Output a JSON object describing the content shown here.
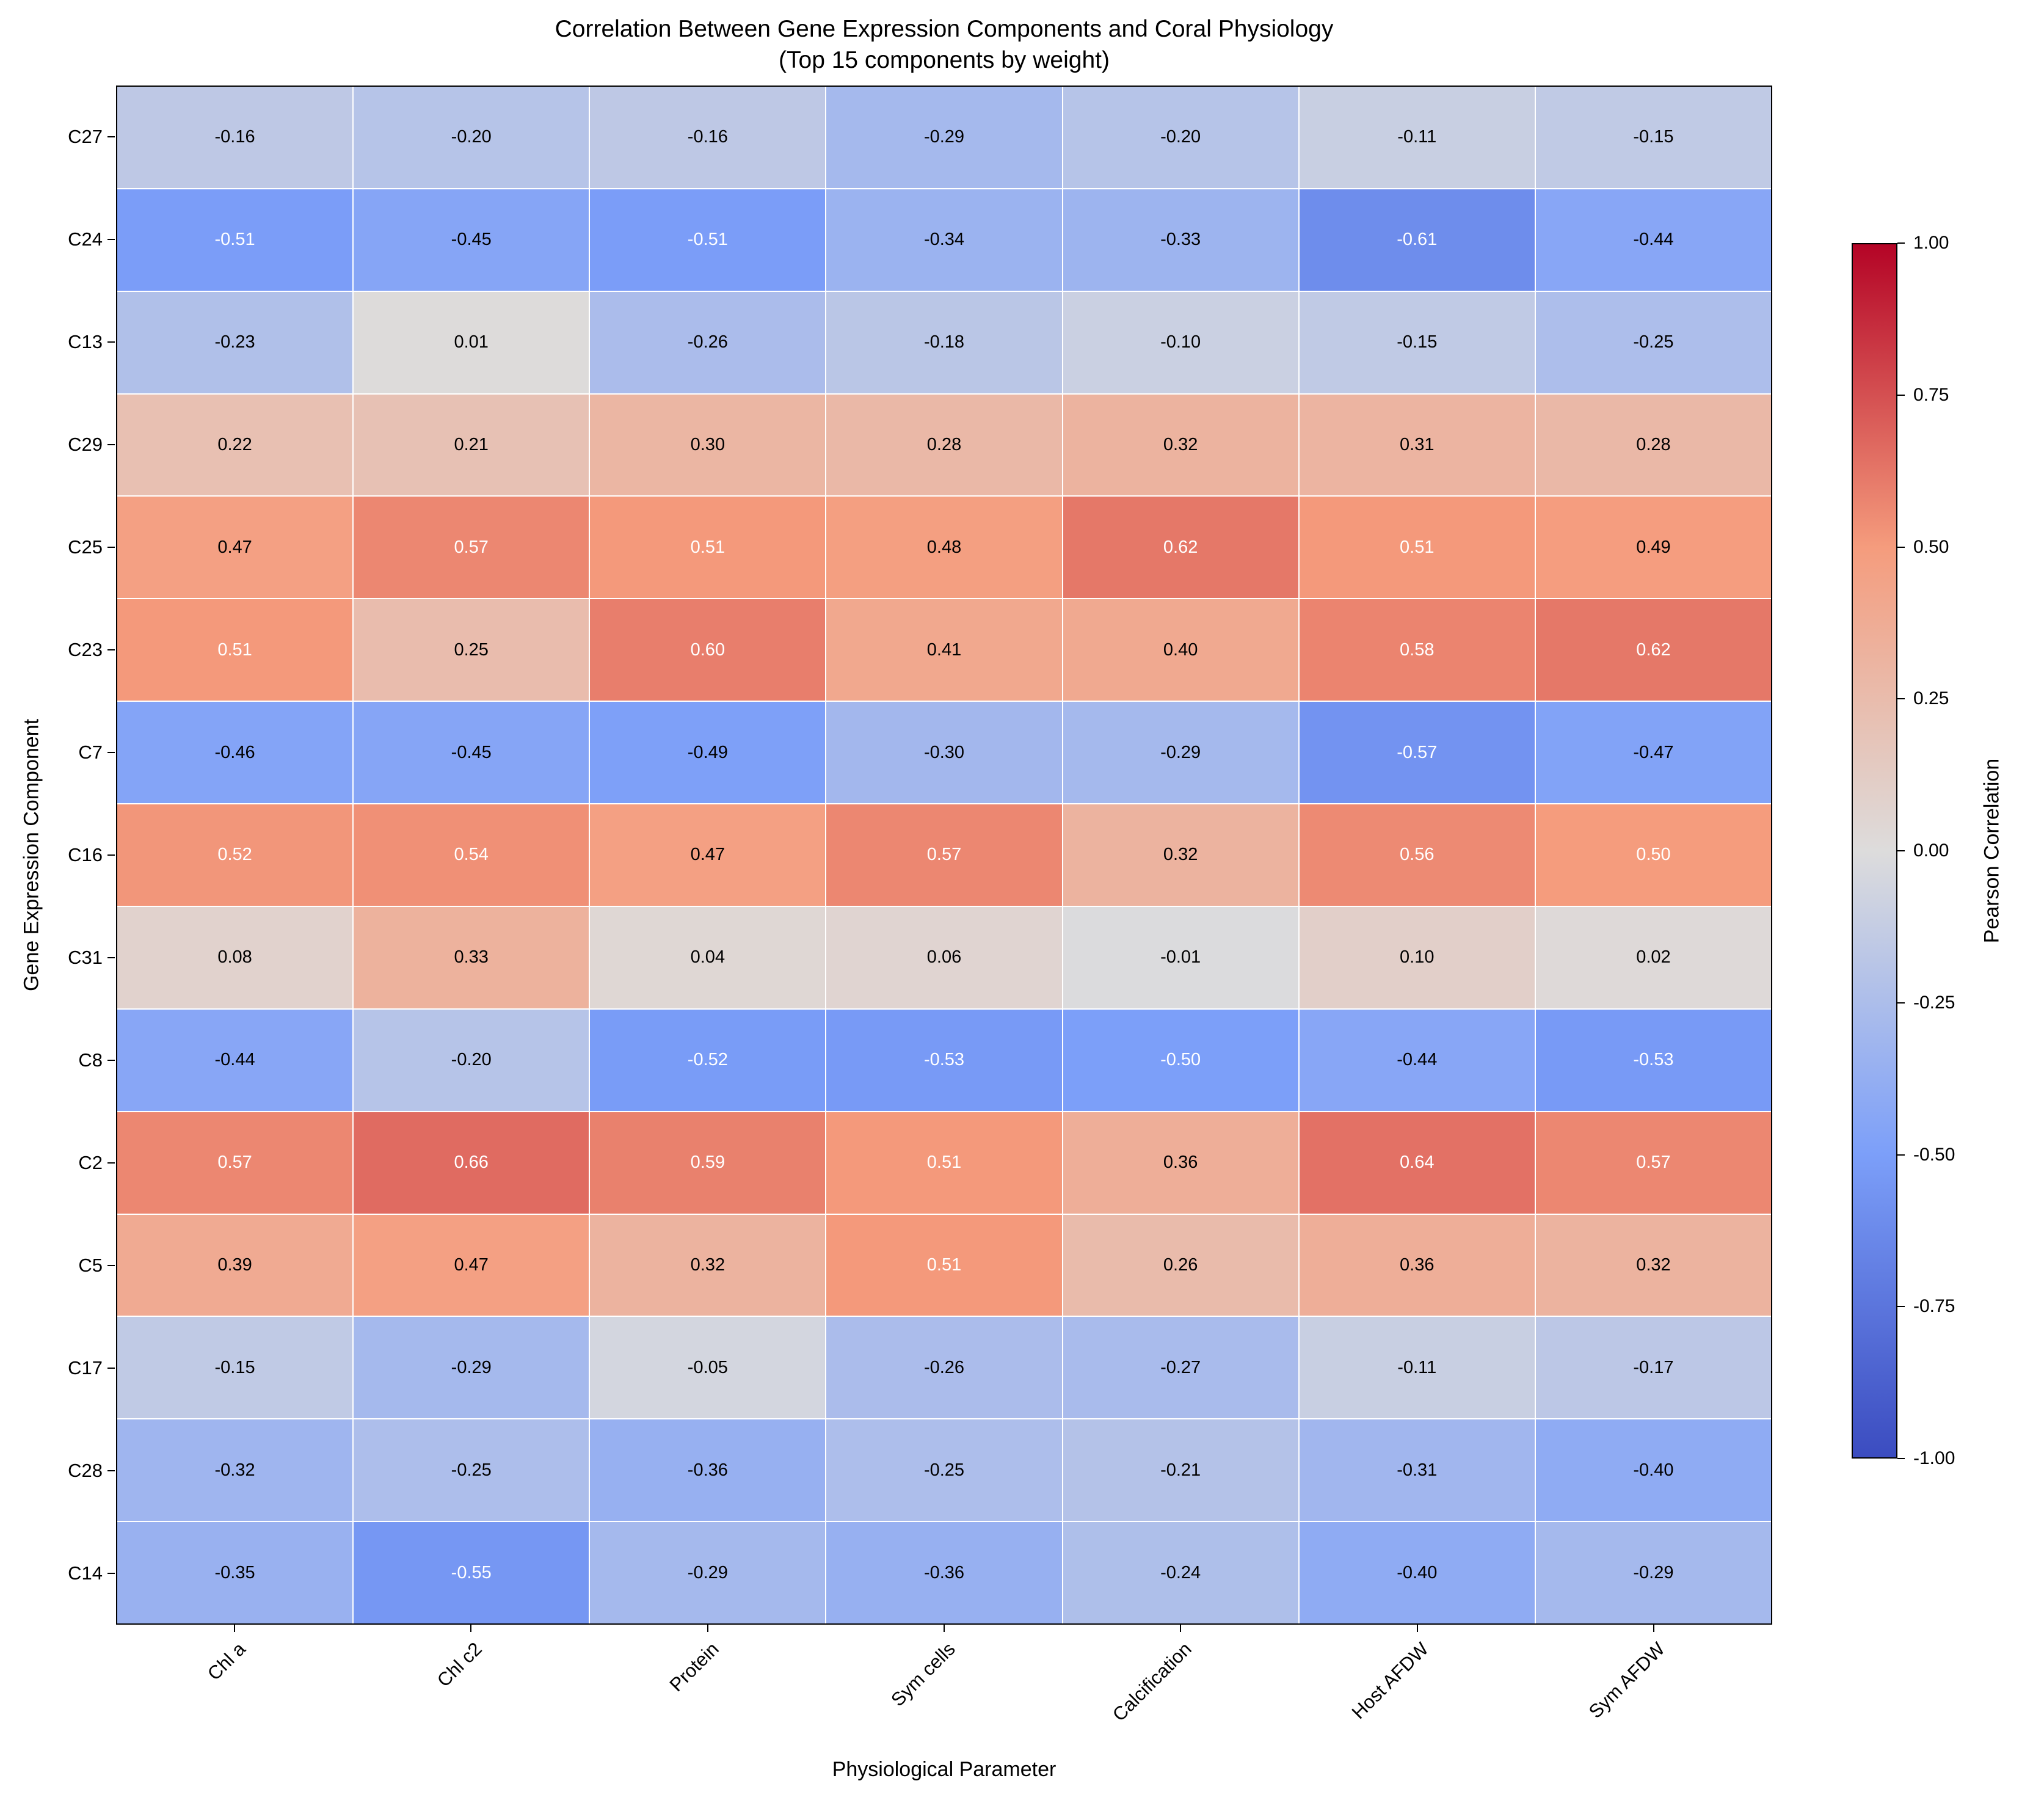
{
  "chart_data": {
    "type": "heatmap",
    "title": "Correlation Between Gene Expression Components and Coral Physiology",
    "subtitle": "(Top 15 components by weight)",
    "xlabel": "Physiological Parameter",
    "ylabel": "Gene Expression Component",
    "columns": [
      "Chl a",
      "Chl c2",
      "Protein",
      "Sym cells",
      "Calcification",
      "Host AFDW",
      "Sym AFDW"
    ],
    "rows": [
      "C27",
      "C24",
      "C13",
      "C29",
      "C25",
      "C23",
      "C7",
      "C16",
      "C31",
      "C8",
      "C2",
      "C5",
      "C17",
      "C28",
      "C14"
    ],
    "values": [
      [
        -0.16,
        -0.2,
        -0.16,
        -0.29,
        -0.2,
        -0.11,
        -0.15
      ],
      [
        -0.51,
        -0.45,
        -0.51,
        -0.34,
        -0.33,
        -0.61,
        -0.44
      ],
      [
        -0.23,
        0.01,
        -0.26,
        -0.18,
        -0.1,
        -0.15,
        -0.25
      ],
      [
        0.22,
        0.21,
        0.3,
        0.28,
        0.32,
        0.31,
        0.28
      ],
      [
        0.47,
        0.57,
        0.51,
        0.48,
        0.62,
        0.51,
        0.49
      ],
      [
        0.51,
        0.25,
        0.6,
        0.41,
        0.4,
        0.58,
        0.62
      ],
      [
        -0.46,
        -0.45,
        -0.49,
        -0.3,
        -0.29,
        -0.57,
        -0.47
      ],
      [
        0.52,
        0.54,
        0.47,
        0.57,
        0.32,
        0.56,
        0.5
      ],
      [
        0.08,
        0.33,
        0.04,
        0.06,
        -0.01,
        0.1,
        0.02
      ],
      [
        -0.44,
        -0.2,
        -0.52,
        -0.53,
        -0.5,
        -0.44,
        -0.53
      ],
      [
        0.57,
        0.66,
        0.59,
        0.51,
        0.36,
        0.64,
        0.57
      ],
      [
        0.39,
        0.47,
        0.32,
        0.51,
        0.26,
        0.36,
        0.32
      ],
      [
        -0.15,
        -0.29,
        -0.05,
        -0.26,
        -0.27,
        -0.11,
        -0.17
      ],
      [
        -0.32,
        -0.25,
        -0.36,
        -0.25,
        -0.21,
        -0.31,
        -0.4
      ],
      [
        -0.35,
        -0.55,
        -0.29,
        -0.36,
        -0.24,
        -0.4,
        -0.29
      ]
    ],
    "colorbar": {
      "label": "Pearson Correlation",
      "ticks": [
        "1.00",
        "0.75",
        "0.50",
        "0.25",
        "0.00",
        "-0.25",
        "-0.50",
        "-0.75",
        "-1.00"
      ],
      "vmin": -1,
      "vmax": 1
    },
    "colormap": {
      "name": "coolwarm",
      "anchors": [
        {
          "t": 0.0,
          "color": "#3b4cc0"
        },
        {
          "t": 0.25,
          "color": "#7c9ff9"
        },
        {
          "t": 0.5,
          "color": "#dddcdc"
        },
        {
          "t": 0.75,
          "color": "#f59c7d"
        },
        {
          "t": 1.0,
          "color": "#b40426"
        }
      ]
    },
    "value_format": "2dp",
    "text_color_threshold": 0.5,
    "grid": false,
    "legend_position": "colorbar-right"
  }
}
